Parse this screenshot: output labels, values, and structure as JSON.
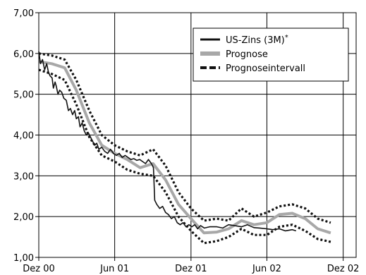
{
  "chart_data": {
    "type": "line",
    "x_domain": [
      "2000-12-01",
      "2003-01-01"
    ],
    "ylim": [
      1.0,
      7.0
    ],
    "yticks": [
      1,
      2,
      3,
      4,
      5,
      6,
      7
    ],
    "ytick_labels": [
      "1,00",
      "2,00",
      "3,00",
      "4,00",
      "5,00",
      "6,00",
      "7,00"
    ],
    "xticks": [
      {
        "date": "2000-12-01",
        "label": "Dez 00"
      },
      {
        "date": "2001-06-01",
        "label": "Jun 01"
      },
      {
        "date": "2001-12-01",
        "label": "Dez 01"
      },
      {
        "date": "2002-06-01",
        "label": "Jun 02"
      },
      {
        "date": "2002-12-01",
        "label": "Dez 02"
      }
    ],
    "grid": true,
    "legend_position": "top-right",
    "legend": [
      {
        "label": "US-Zins (3M)",
        "marker": "*",
        "series": "actual"
      },
      {
        "label": "Prognose",
        "series": "forecast"
      },
      {
        "label": "Prognoseintervall",
        "series": "interval"
      }
    ],
    "series": [
      {
        "name": "US-Zins (3M)",
        "key": "actual",
        "color": "#111111",
        "points": [
          [
            "2000-12-01",
            6.05
          ],
          [
            "2000-12-05",
            5.75
          ],
          [
            "2000-12-10",
            5.85
          ],
          [
            "2000-12-15",
            5.6
          ],
          [
            "2000-12-20",
            5.75
          ],
          [
            "2000-12-24",
            5.55
          ],
          [
            "2000-12-28",
            5.45
          ],
          [
            "2001-01-02",
            5.4
          ],
          [
            "2001-01-05",
            5.15
          ],
          [
            "2001-01-09",
            5.3
          ],
          [
            "2001-01-12",
            5.2
          ],
          [
            "2001-01-16",
            5.0
          ],
          [
            "2001-01-20",
            5.1
          ],
          [
            "2001-01-25",
            5.05
          ],
          [
            "2001-01-30",
            4.9
          ],
          [
            "2001-02-05",
            4.85
          ],
          [
            "2001-02-10",
            4.6
          ],
          [
            "2001-02-15",
            4.65
          ],
          [
            "2001-02-20",
            4.5
          ],
          [
            "2001-02-25",
            4.6
          ],
          [
            "2001-03-01",
            4.4
          ],
          [
            "2001-03-06",
            4.45
          ],
          [
            "2001-03-10",
            4.2
          ],
          [
            "2001-03-15",
            4.3
          ],
          [
            "2001-03-20",
            4.1
          ],
          [
            "2001-03-25",
            4.0
          ],
          [
            "2001-03-30",
            4.05
          ],
          [
            "2001-04-04",
            3.95
          ],
          [
            "2001-04-09",
            3.85
          ],
          [
            "2001-04-14",
            3.75
          ],
          [
            "2001-04-19",
            3.8
          ],
          [
            "2001-04-24",
            3.65
          ],
          [
            "2001-05-01",
            3.7
          ],
          [
            "2001-05-08",
            3.6
          ],
          [
            "2001-05-15",
            3.55
          ],
          [
            "2001-05-22",
            3.65
          ],
          [
            "2001-05-29",
            3.55
          ],
          [
            "2001-06-05",
            3.5
          ],
          [
            "2001-06-12",
            3.55
          ],
          [
            "2001-06-19",
            3.45
          ],
          [
            "2001-06-26",
            3.5
          ],
          [
            "2001-07-03",
            3.45
          ],
          [
            "2001-07-10",
            3.4
          ],
          [
            "2001-07-17",
            3.42
          ],
          [
            "2001-07-24",
            3.38
          ],
          [
            "2001-07-31",
            3.4
          ],
          [
            "2001-08-07",
            3.35
          ],
          [
            "2001-08-14",
            3.3
          ],
          [
            "2001-08-21",
            3.4
          ],
          [
            "2001-08-28",
            3.3
          ],
          [
            "2001-09-02",
            3.2
          ],
          [
            "2001-09-05",
            2.4
          ],
          [
            "2001-09-10",
            2.3
          ],
          [
            "2001-09-17",
            2.2
          ],
          [
            "2001-09-24",
            2.25
          ],
          [
            "2001-10-01",
            2.1
          ],
          [
            "2001-10-08",
            2.05
          ],
          [
            "2001-10-15",
            1.95
          ],
          [
            "2001-10-22",
            2.0
          ],
          [
            "2001-10-29",
            1.85
          ],
          [
            "2001-11-05",
            1.8
          ],
          [
            "2001-11-12",
            1.85
          ],
          [
            "2001-11-19",
            1.75
          ],
          [
            "2001-11-26",
            1.8
          ],
          [
            "2001-12-03",
            1.75
          ],
          [
            "2001-12-10",
            1.8
          ],
          [
            "2001-12-17",
            1.7
          ],
          [
            "2001-12-24",
            1.78
          ],
          [
            "2002-01-02",
            1.72
          ],
          [
            "2002-01-15",
            1.75
          ],
          [
            "2002-02-01",
            1.75
          ],
          [
            "2002-02-15",
            1.72
          ],
          [
            "2002-03-01",
            1.8
          ],
          [
            "2002-03-15",
            1.78
          ],
          [
            "2002-04-01",
            1.75
          ],
          [
            "2002-04-15",
            1.8
          ],
          [
            "2002-05-01",
            1.73
          ],
          [
            "2002-05-15",
            1.72
          ],
          [
            "2002-06-01",
            1.7
          ],
          [
            "2002-06-15",
            1.68
          ],
          [
            "2002-07-01",
            1.7
          ],
          [
            "2002-07-15",
            1.65
          ],
          [
            "2002-08-01",
            1.68
          ],
          [
            "2002-08-10",
            1.65
          ]
        ]
      },
      {
        "name": "Prognose",
        "key": "forecast",
        "color": "#a8a8a8",
        "points": [
          [
            "2000-12-01",
            5.8
          ],
          [
            "2001-01-01",
            5.75
          ],
          [
            "2001-02-01",
            5.65
          ],
          [
            "2001-03-01",
            5.1
          ],
          [
            "2001-04-01",
            4.3
          ],
          [
            "2001-05-01",
            3.75
          ],
          [
            "2001-06-01",
            3.55
          ],
          [
            "2001-07-01",
            3.4
          ],
          [
            "2001-08-01",
            3.2
          ],
          [
            "2001-09-01",
            3.3
          ],
          [
            "2001-10-01",
            2.9
          ],
          [
            "2001-11-01",
            2.3
          ],
          [
            "2001-12-01",
            1.95
          ],
          [
            "2002-01-01",
            1.6
          ],
          [
            "2002-02-01",
            1.62
          ],
          [
            "2002-03-01",
            1.7
          ],
          [
            "2002-04-01",
            1.9
          ],
          [
            "2002-05-01",
            1.8
          ],
          [
            "2002-06-01",
            1.85
          ],
          [
            "2002-07-01",
            2.05
          ],
          [
            "2002-08-01",
            2.08
          ],
          [
            "2002-09-01",
            1.95
          ],
          [
            "2002-10-01",
            1.7
          ],
          [
            "2002-11-01",
            1.6
          ]
        ]
      },
      {
        "name": "Prognoseintervall (oben)",
        "key": "interval_upper",
        "color": "#111111",
        "points": [
          [
            "2000-12-01",
            6.0
          ],
          [
            "2001-01-01",
            5.95
          ],
          [
            "2001-02-01",
            5.85
          ],
          [
            "2001-03-01",
            5.35
          ],
          [
            "2001-04-01",
            4.6
          ],
          [
            "2001-05-01",
            4.0
          ],
          [
            "2001-06-01",
            3.75
          ],
          [
            "2001-07-01",
            3.6
          ],
          [
            "2001-08-01",
            3.5
          ],
          [
            "2001-09-01",
            3.65
          ],
          [
            "2001-10-01",
            3.25
          ],
          [
            "2001-11-01",
            2.6
          ],
          [
            "2001-12-01",
            2.2
          ],
          [
            "2002-01-01",
            1.9
          ],
          [
            "2002-02-01",
            1.95
          ],
          [
            "2002-03-01",
            1.9
          ],
          [
            "2002-04-01",
            2.2
          ],
          [
            "2002-05-01",
            2.0
          ],
          [
            "2002-06-01",
            2.1
          ],
          [
            "2002-07-01",
            2.25
          ],
          [
            "2002-08-01",
            2.3
          ],
          [
            "2002-09-01",
            2.2
          ],
          [
            "2002-10-01",
            1.95
          ],
          [
            "2002-11-01",
            1.85
          ]
        ]
      },
      {
        "name": "Prognoseintervall (unten)",
        "key": "interval_lower",
        "color": "#111111",
        "points": [
          [
            "2000-12-01",
            5.6
          ],
          [
            "2001-01-01",
            5.5
          ],
          [
            "2001-02-01",
            5.35
          ],
          [
            "2001-03-01",
            4.75
          ],
          [
            "2001-04-01",
            3.95
          ],
          [
            "2001-05-01",
            3.5
          ],
          [
            "2001-06-01",
            3.35
          ],
          [
            "2001-07-01",
            3.15
          ],
          [
            "2001-08-01",
            3.05
          ],
          [
            "2001-09-01",
            3.0
          ],
          [
            "2001-10-01",
            2.6
          ],
          [
            "2001-11-01",
            2.0
          ],
          [
            "2001-12-01",
            1.65
          ],
          [
            "2002-01-01",
            1.35
          ],
          [
            "2002-02-01",
            1.4
          ],
          [
            "2002-03-01",
            1.5
          ],
          [
            "2002-04-01",
            1.7
          ],
          [
            "2002-05-01",
            1.55
          ],
          [
            "2002-06-01",
            1.55
          ],
          [
            "2002-07-01",
            1.75
          ],
          [
            "2002-08-01",
            1.8
          ],
          [
            "2002-09-01",
            1.65
          ],
          [
            "2002-10-01",
            1.45
          ],
          [
            "2002-11-01",
            1.38
          ]
        ]
      }
    ]
  }
}
